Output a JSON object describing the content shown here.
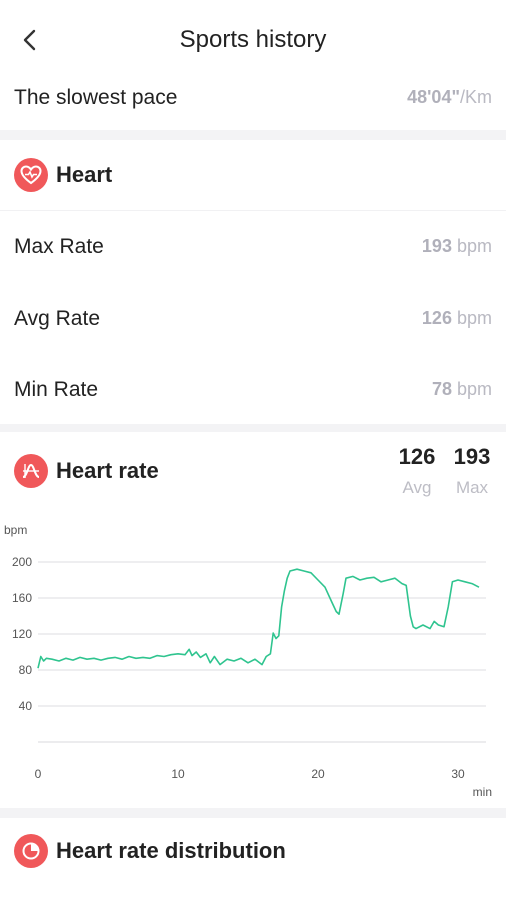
{
  "header": {
    "title": "Sports history"
  },
  "pace": {
    "label": "The slowest pace",
    "value": "48'04\"",
    "unit": "/Km"
  },
  "heart": {
    "title": "Heart",
    "rows": [
      {
        "label": "Max Rate",
        "value": "193",
        "unit": "bpm"
      },
      {
        "label": "Avg Rate",
        "value": "126",
        "unit": "bpm"
      },
      {
        "label": "Min Rate",
        "value": "78",
        "unit": "bpm"
      }
    ]
  },
  "heart_rate": {
    "title": "Heart rate",
    "avg_value": "126",
    "avg_label": "Avg",
    "max_value": "193",
    "max_label": "Max"
  },
  "distribution": {
    "title": "Heart rate distribution"
  },
  "colors": {
    "accent": "#f0585a",
    "line": "#2fc48f",
    "muted": "#b9b9c2"
  },
  "icons": {
    "back": "chevron-left-icon",
    "heart": "heart-icon",
    "heart_rate": "heart-rate-icon",
    "distribution": "pie-icon"
  },
  "chart_data": {
    "type": "line",
    "title": "",
    "xlabel": "min",
    "ylabel": "bpm",
    "xlim": [
      0,
      32
    ],
    "ylim": [
      0,
      220
    ],
    "x_ticks": [
      0,
      10,
      20,
      30
    ],
    "y_ticks": [
      40,
      80,
      120,
      160,
      200
    ],
    "grid": true,
    "series": [
      {
        "values_x": [
          0,
          0.2,
          0.4,
          0.6,
          1,
          1.5,
          2,
          2.5,
          3,
          3.5,
          4,
          4.5,
          5,
          5.5,
          6,
          6.5,
          7,
          7.5,
          8,
          8.5,
          9,
          9.5,
          10,
          10.5,
          10.8,
          11,
          11.3,
          11.6,
          12,
          12.3,
          12.6,
          13,
          13.5,
          14,
          14.5,
          15,
          15.5,
          16,
          16.3,
          16.6,
          16.8,
          17,
          17.2,
          17.4,
          17.6,
          17.8,
          18,
          18.5,
          19,
          19.5,
          20,
          20.5,
          21,
          21.3,
          21.5,
          21.8,
          22,
          22.5,
          23,
          23.5,
          24,
          24.5,
          25,
          25.5,
          26,
          26.3,
          26.6,
          26.8,
          27,
          27.5,
          28,
          28.3,
          28.6,
          29,
          29.3,
          29.6,
          30,
          30.5,
          31,
          31.5
        ],
        "values_y": [
          82,
          95,
          90,
          93,
          92,
          90,
          93,
          91,
          94,
          92,
          93,
          91,
          93,
          94,
          92,
          95,
          93,
          94,
          93,
          96,
          95,
          97,
          98,
          97,
          103,
          96,
          100,
          94,
          98,
          88,
          95,
          86,
          92,
          90,
          93,
          88,
          92,
          86,
          95,
          98,
          121,
          115,
          118,
          150,
          168,
          182,
          190,
          192,
          190,
          188,
          180,
          172,
          155,
          145,
          142,
          165,
          182,
          184,
          180,
          182,
          183,
          178,
          180,
          182,
          176,
          174,
          140,
          128,
          126,
          130,
          126,
          134,
          130,
          128,
          150,
          178,
          180,
          178,
          176,
          172
        ]
      }
    ]
  }
}
